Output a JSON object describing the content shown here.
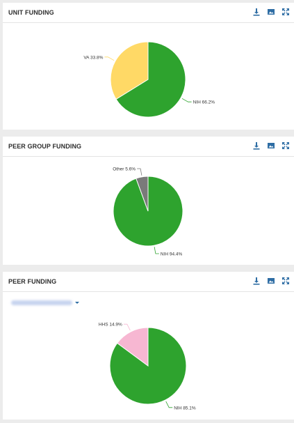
{
  "colors": {
    "green": "#2ea32e",
    "yellow": "#ffd966",
    "gray": "#7a7a7a",
    "pink": "#f7b7d2",
    "icon": "#2e6da4"
  },
  "toolbar_icons": [
    "download-icon",
    "image-icon",
    "expand-icon"
  ],
  "peer_funding_dropdown": {
    "selected": ""
  },
  "chart_data": [
    {
      "type": "pie",
      "title": "UNIT FUNDING",
      "slices": [
        {
          "label": "NIH",
          "value": 66.2,
          "display": "NIH 66.2%",
          "color": "#2ea32e"
        },
        {
          "label": "VA",
          "value": 33.8,
          "display": "VA 33.8%",
          "color": "#ffd966"
        }
      ]
    },
    {
      "type": "pie",
      "title": "PEER GROUP FUNDING",
      "slices": [
        {
          "label": "NIH",
          "value": 94.4,
          "display": "NIH 94.4%",
          "color": "#2ea32e"
        },
        {
          "label": "Other",
          "value": 5.6,
          "display": "Other 5.6%",
          "color": "#7a7a7a"
        }
      ]
    },
    {
      "type": "pie",
      "title": "PEER FUNDING",
      "slices": [
        {
          "label": "NIH",
          "value": 85.1,
          "display": "NIH 85.1%",
          "color": "#2ea32e"
        },
        {
          "label": "HHS",
          "value": 14.9,
          "display": "HHS 14.9%",
          "color": "#f7b7d2"
        }
      ]
    }
  ]
}
